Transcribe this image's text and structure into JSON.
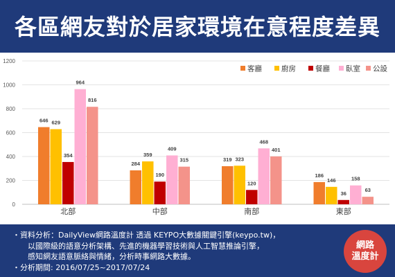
{
  "title": "各區網友對於居家環境在意程度差異",
  "chart_data": {
    "type": "bar",
    "categories": [
      "北部",
      "中部",
      "南部",
      "東部"
    ],
    "series": [
      {
        "name": "客廳",
        "color": "#f07d2c",
        "values": [
          646,
          284,
          319,
          186
        ]
      },
      {
        "name": "廚房",
        "color": "#ffc000",
        "values": [
          629,
          359,
          323,
          146
        ]
      },
      {
        "name": "餐廳",
        "color": "#c00000",
        "values": [
          354,
          190,
          120,
          36
        ]
      },
      {
        "name": "臥室",
        "color": "#ffafd3",
        "values": [
          964,
          409,
          468,
          158
        ]
      },
      {
        "name": "公設",
        "color": "#f4938a",
        "values": [
          816,
          315,
          401,
          63
        ]
      }
    ],
    "yticks": [
      0,
      200,
      400,
      600,
      800,
      1000,
      1200
    ],
    "ylim": [
      0,
      1200
    ],
    "grid": true,
    "legend_position": "top-right"
  },
  "footer": {
    "lines": [
      "・資料分析：DailyView網路溫度計 透過 KEYPO大數據關鍵引擎(keypo.tw)，",
      "以國際級的語意分析架構、先進的機器學習技術與人工智慧推論引擎，",
      "感知網友語意脈絡與情緒，分析時事網路大數據。",
      "・分析期間: 2016/07/25~2017/07/24"
    ],
    "logo_text": [
      "網路",
      "溫度計"
    ]
  }
}
